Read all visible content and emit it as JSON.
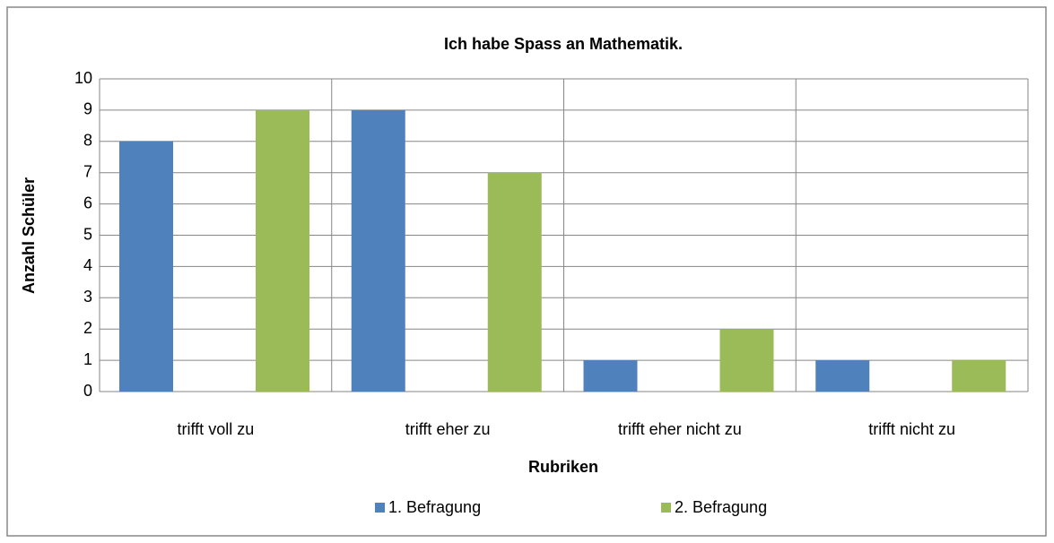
{
  "chart_data": {
    "type": "bar",
    "title": "Ich habe Spass an Mathematik.",
    "x_label": "Rubriken",
    "y_label": "Anzahl Schüler",
    "categories": [
      "trifft voll zu",
      "trifft eher zu",
      "trifft eher nicht zu",
      "trifft nicht zu"
    ],
    "series": [
      {
        "name": "1. Befragung",
        "color": "#4f81bd",
        "values": [
          8,
          9,
          1,
          1
        ]
      },
      {
        "name": "2. Befragung",
        "color": "#9bbb59",
        "values": [
          9,
          7,
          2,
          1
        ]
      }
    ],
    "ylim": [
      0,
      10
    ],
    "yticks": [
      0,
      1,
      2,
      3,
      4,
      5,
      6,
      7,
      8,
      9,
      10
    ],
    "grid": true,
    "legend": "bottom"
  }
}
